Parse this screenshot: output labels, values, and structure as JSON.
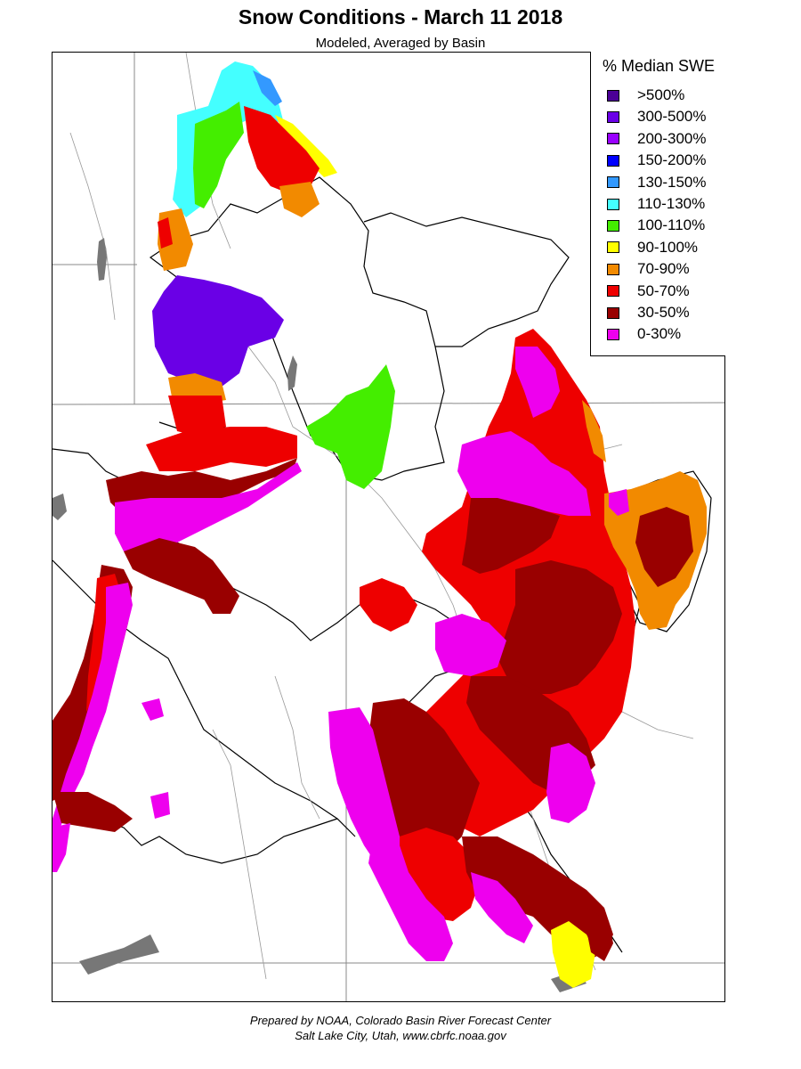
{
  "header": {
    "title": "Snow Conditions - March 11 2018",
    "subtitle": "Modeled, Averaged by Basin"
  },
  "legend": {
    "title": "% Median SWE",
    "items": [
      {
        "label": ">500%",
        "color": "#4B0096"
      },
      {
        "label": "300-500%",
        "color": "#6A00E6"
      },
      {
        "label": "200-300%",
        "color": "#9900FF"
      },
      {
        "label": "150-200%",
        "color": "#0000FF"
      },
      {
        "label": "130-150%",
        "color": "#3399FF"
      },
      {
        "label": "110-130%",
        "color": "#44FFFF"
      },
      {
        "label": "100-110%",
        "color": "#44EE00"
      },
      {
        "label": "90-100%",
        "color": "#FFFF00"
      },
      {
        "label": "70-90%",
        "color": "#F28A00"
      },
      {
        "label": "50-70%",
        "color": "#EE0000"
      },
      {
        "label": "30-50%",
        "color": "#990000"
      },
      {
        "label": "0-30%",
        "color": "#EE00EE"
      }
    ]
  },
  "footer": {
    "line1": "Prepared by NOAA, Colorado Basin River Forecast Center",
    "line2": "Salt Lake City, Utah, www.cbrfc.noaa.gov"
  }
}
